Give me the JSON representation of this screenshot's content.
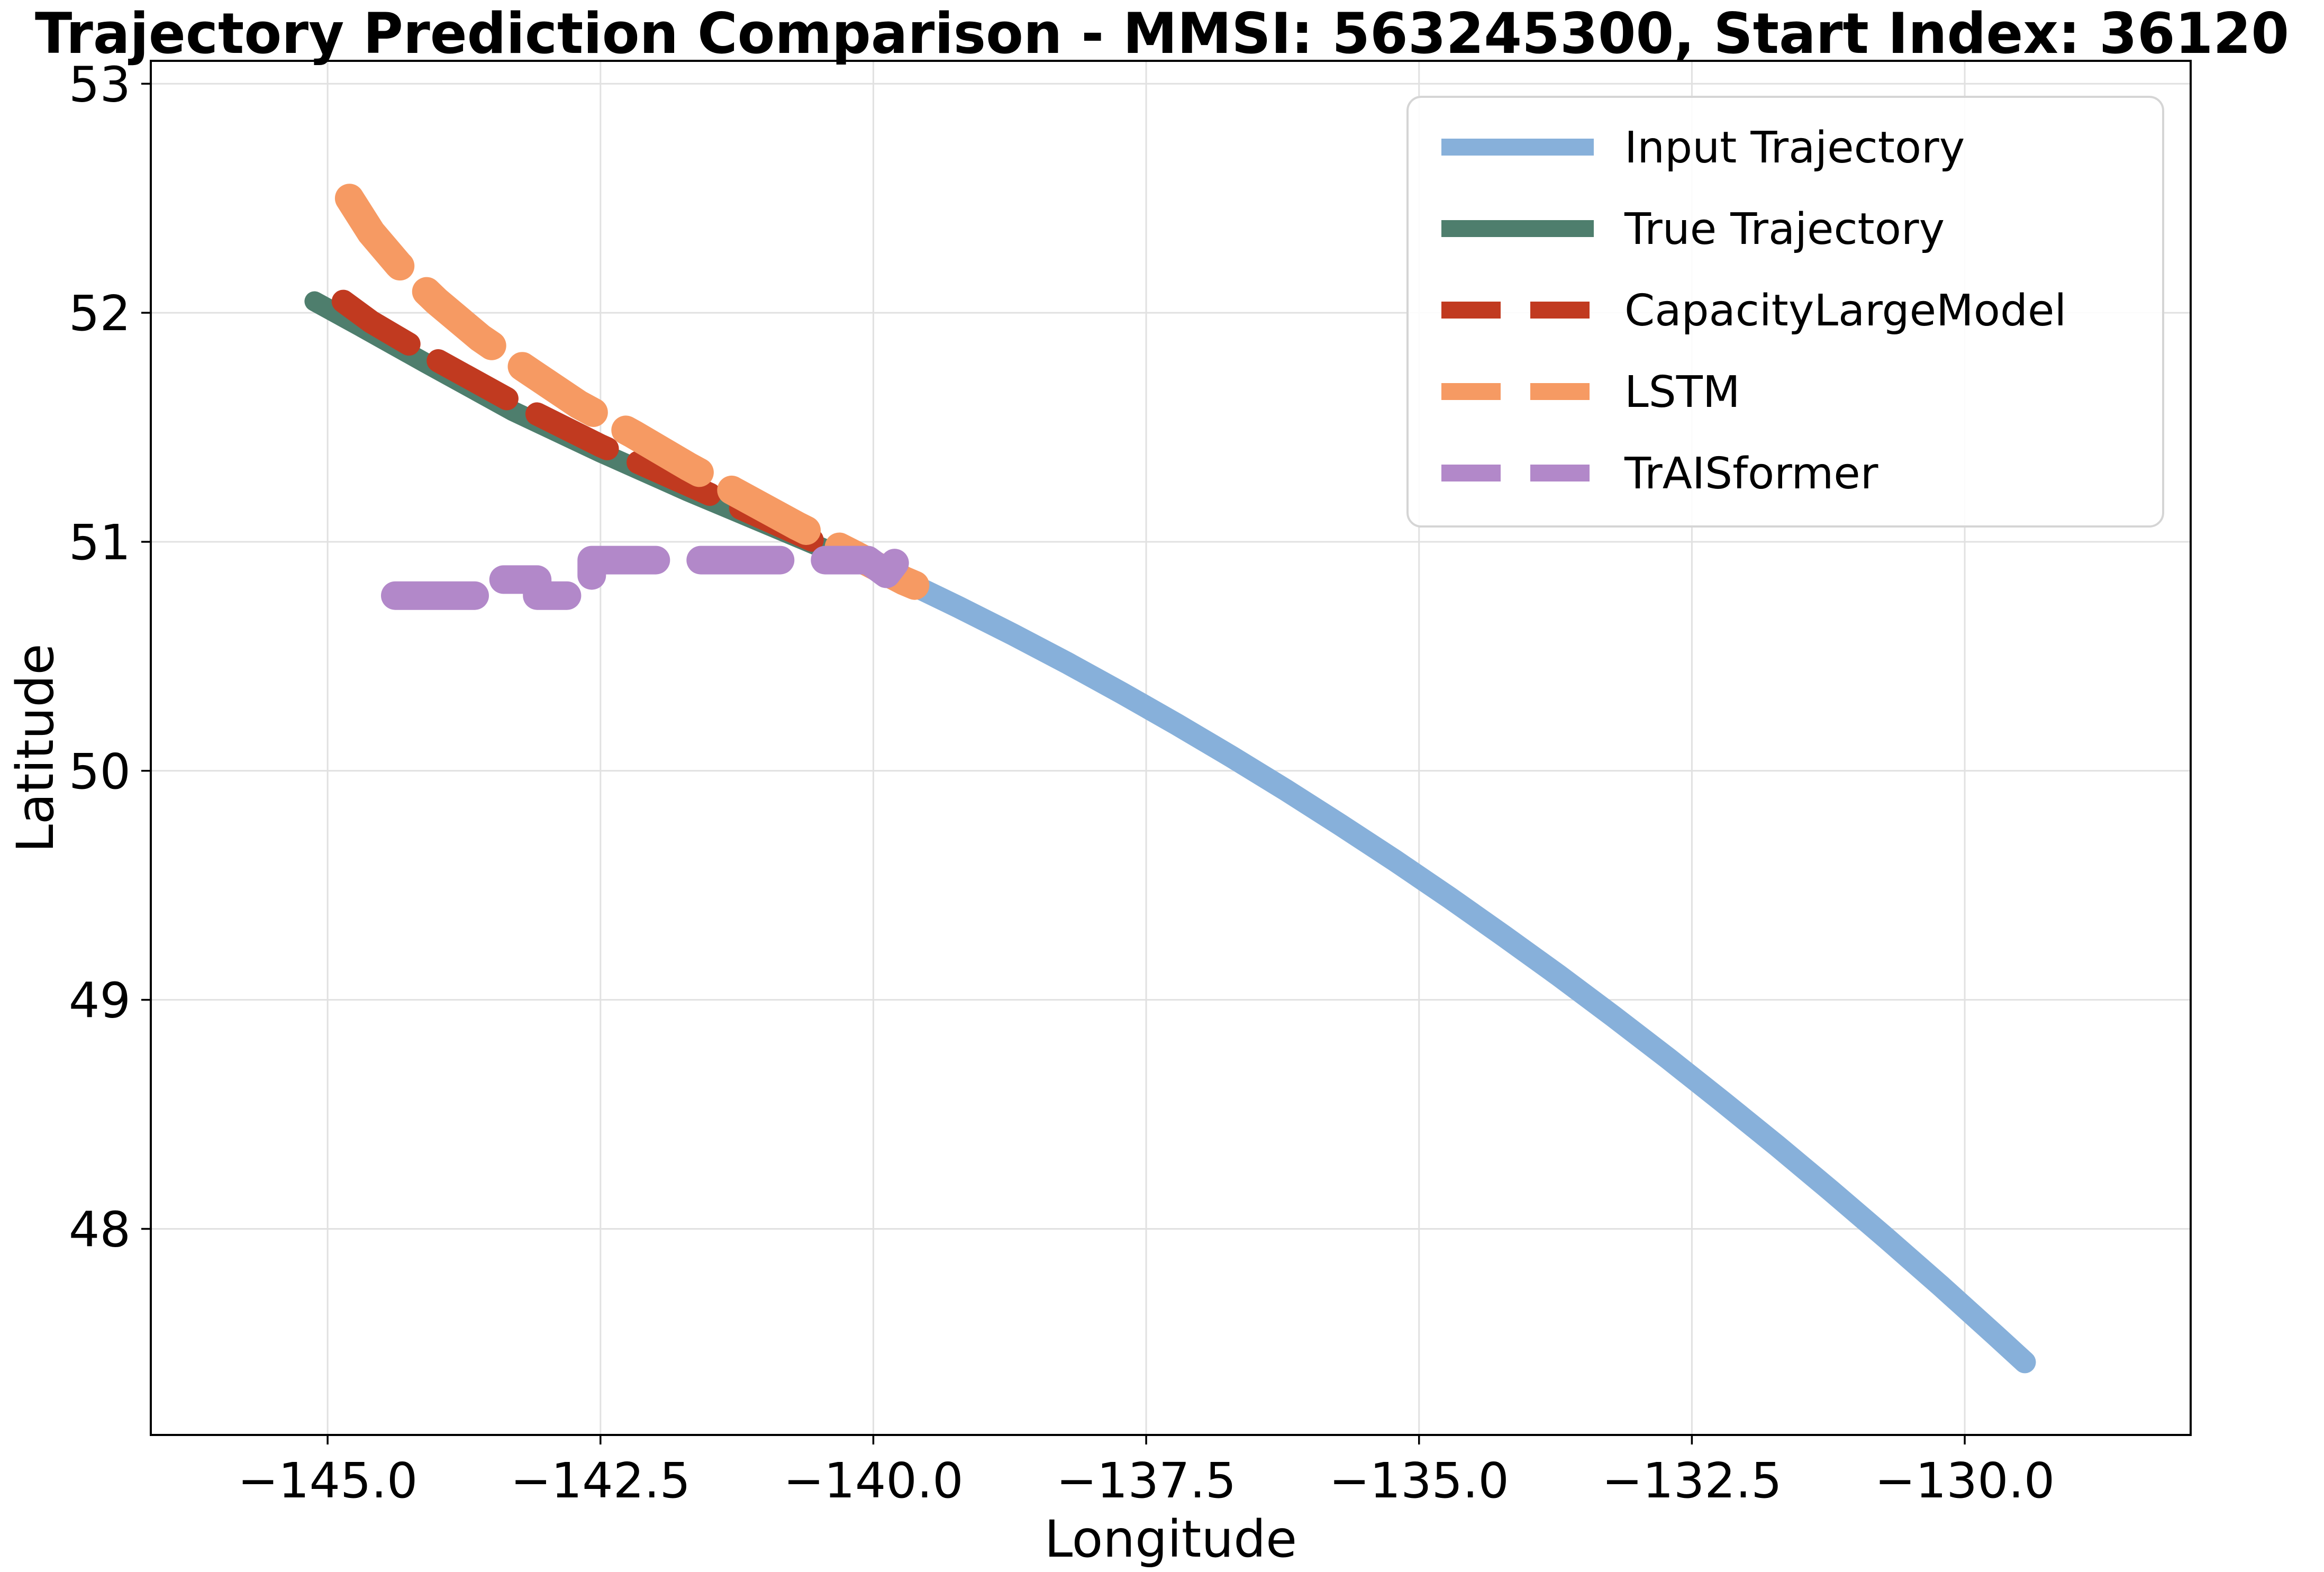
{
  "chart_data": {
    "type": "line",
    "title": "Trajectory Prediction Comparison - MMSI: 563245300, Start Index: 36120",
    "xlabel": "Longitude",
    "ylabel": "Latitude",
    "xlim": [
      -146.62,
      -127.93
    ],
    "ylim": [
      47.1,
      53.1
    ],
    "grid": true,
    "grid_color": "#E1E1E1",
    "spine_color": "#000000",
    "legend_position": "upper right",
    "legend_border_color": "#D5D5D5",
    "legend_background": "#FFFFFF",
    "x_ticks": [
      -145.0,
      -142.5,
      -140.0,
      -137.5,
      -135.0,
      -132.5,
      -130.0
    ],
    "x_tick_labels": [
      "−145.0",
      "−142.5",
      "−140.0",
      "−137.5",
      "−135.0",
      "−132.5",
      "−130.0"
    ],
    "y_ticks": [
      53,
      52,
      51,
      50,
      49,
      48
    ],
    "y_tick_labels": [
      "53",
      "52",
      "51",
      "50",
      "49",
      "48"
    ],
    "series": [
      {
        "name": "Input Trajectory",
        "slug": "input-trajectory",
        "color": "#87B0DA",
        "line_style": "solid",
        "line_width": 42,
        "z": 0,
        "points": [
          [
            -139.72,
            50.83
          ],
          [
            -139.22,
            50.715
          ],
          [
            -138.72,
            50.595
          ],
          [
            -138.22,
            50.47
          ],
          [
            -137.72,
            50.339
          ],
          [
            -137.22,
            50.203
          ],
          [
            -136.72,
            50.062
          ],
          [
            -136.22,
            49.916
          ],
          [
            -135.72,
            49.764
          ],
          [
            -135.22,
            49.608
          ],
          [
            -134.72,
            49.446
          ],
          [
            -134.22,
            49.278
          ],
          [
            -133.72,
            49.106
          ],
          [
            -133.22,
            48.928
          ],
          [
            -132.72,
            48.745
          ],
          [
            -132.22,
            48.556
          ],
          [
            -131.72,
            48.363
          ],
          [
            -131.22,
            48.164
          ],
          [
            -130.72,
            47.96
          ],
          [
            -130.22,
            47.751
          ],
          [
            -129.72,
            47.536
          ],
          [
            -129.45,
            47.418
          ]
        ]
      },
      {
        "name": "True Trajectory",
        "slug": "true-trajectory",
        "color": "#4E7E6D",
        "line_style": "solid",
        "line_width": 38,
        "z": 1,
        "points": [
          [
            -139.6,
            50.8
          ],
          [
            -139.72,
            50.83
          ],
          [
            -140.2,
            50.92
          ],
          [
            -140.9,
            51.06
          ],
          [
            -141.7,
            51.22
          ],
          [
            -142.5,
            51.39
          ],
          [
            -143.3,
            51.57
          ],
          [
            -144.1,
            51.78
          ],
          [
            -144.7,
            51.94
          ],
          [
            -145.12,
            52.05
          ]
        ]
      },
      {
        "name": "CapacityLargeModel",
        "slug": "capacity-large-model",
        "color": "#C13A20",
        "line_style": "dashed",
        "line_width": 44,
        "dash": [
          148,
          64
        ],
        "z": 2,
        "points": [
          [
            -139.62,
            50.81
          ],
          [
            -139.72,
            50.83
          ],
          [
            -140.2,
            50.93
          ],
          [
            -140.9,
            51.08
          ],
          [
            -141.7,
            51.25
          ],
          [
            -142.5,
            51.42
          ],
          [
            -143.3,
            51.61
          ],
          [
            -144.1,
            51.82
          ],
          [
            -144.6,
            51.96
          ],
          [
            -145.0,
            52.1
          ]
        ]
      },
      {
        "name": "LSTM",
        "slug": "lstm",
        "color": "#F69A63",
        "line_style": "dashed",
        "line_width": 55,
        "dash": [
          160,
          70
        ],
        "z": 3,
        "points": [
          [
            -139.62,
            50.81
          ],
          [
            -139.72,
            50.83
          ],
          [
            -140.2,
            50.95
          ],
          [
            -140.7,
            51.07
          ],
          [
            -141.2,
            51.2
          ],
          [
            -141.7,
            51.33
          ],
          [
            -142.2,
            51.47
          ],
          [
            -142.7,
            51.6
          ],
          [
            -143.2,
            51.76
          ],
          [
            -143.6,
            51.89
          ],
          [
            -144.0,
            52.05
          ],
          [
            -144.35,
            52.21
          ],
          [
            -144.6,
            52.35
          ],
          [
            -144.8,
            52.5
          ],
          [
            -144.87,
            52.56
          ]
        ]
      },
      {
        "name": "TrAISformer",
        "slug": "traisformer",
        "color": "#B288C9",
        "line_style": "dashed",
        "line_width": 54,
        "dash": [
          150,
          85
        ],
        "z": 4,
        "points": [
          [
            -144.38,
            50.765
          ],
          [
            -143.52,
            50.765
          ],
          [
            -143.52,
            50.835
          ],
          [
            -143.08,
            50.835
          ],
          [
            -143.08,
            50.765
          ],
          [
            -142.76,
            50.765
          ],
          [
            -142.76,
            50.835
          ],
          [
            -142.58,
            50.835
          ],
          [
            -142.58,
            50.92
          ],
          [
            -140.05,
            50.92
          ],
          [
            -139.88,
            50.86
          ],
          [
            -139.8,
            50.91
          ],
          [
            -139.73,
            50.8
          ]
        ]
      }
    ]
  }
}
